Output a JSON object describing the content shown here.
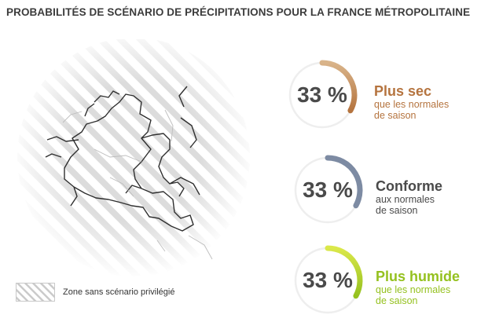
{
  "title": "PROBABILITÉS DE SCÉNARIO DE PRÉCIPITATIONS POUR LA FRANCE MÉTROPOLITAINE",
  "legend": {
    "label": "Zone sans scénario privilégié"
  },
  "colors": {
    "dry": "#b5743f",
    "dry_light": "#d9b48a",
    "normal": "#7d8ba3",
    "humid": "#95c11f",
    "humid_light": "#dbe84a",
    "track": "#eeeeee",
    "text": "#4a4a4a"
  },
  "chart_data": {
    "type": "gauge",
    "title": "PROBABILITÉS DE SCÉNARIO DE PRÉCIPITATIONS POUR LA FRANCE MÉTROPOLITAINE",
    "scenarios": [
      {
        "key": "dry",
        "percent_label": "33 %",
        "value": 33,
        "title": "Plus sec",
        "subtitle_lines": [
          "que les normales",
          "de saison"
        ]
      },
      {
        "key": "normal",
        "percent_label": "33 %",
        "value": 33,
        "title": "Conforme",
        "subtitle_lines": [
          "aux normales",
          "de saison"
        ]
      },
      {
        "key": "humid",
        "percent_label": "33 %",
        "value": 33,
        "title": "Plus humide",
        "subtitle_lines": [
          "que les normales",
          "de saison"
        ]
      }
    ]
  }
}
